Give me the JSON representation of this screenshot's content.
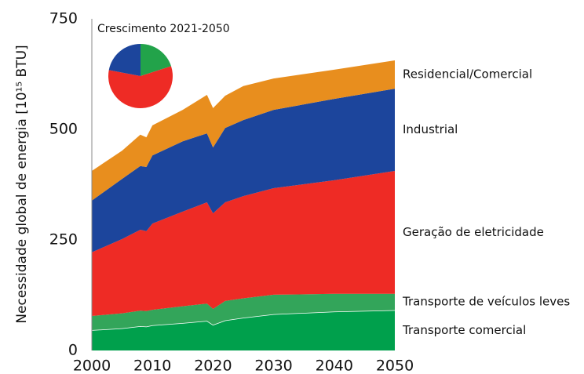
{
  "chart_data": [
    {
      "type": "area",
      "y_label": "Necessidade global de energia [10¹⁵ BTU]",
      "x": [
        2000,
        2005,
        2008,
        2009,
        2010,
        2015,
        2019,
        2020,
        2022,
        2025,
        2030,
        2040,
        2050
      ],
      "xlim": [
        2000,
        2050
      ],
      "xticks": [
        2000,
        2010,
        2020,
        2030,
        2040,
        2050
      ],
      "ylim": [
        0,
        750
      ],
      "yticks": [
        0,
        250,
        500,
        750
      ],
      "stacked": true,
      "series": [
        {
          "name": "Transporte comercial",
          "color": "#00a04c",
          "values": [
            46,
            50,
            55,
            54,
            57,
            62,
            67,
            58,
            68,
            74,
            82,
            88,
            91
          ]
        },
        {
          "name": "Transporte de veículos leves",
          "color": "#33a55a",
          "values": [
            32,
            34,
            35,
            35,
            35,
            38,
            39,
            36,
            44,
            44,
            44,
            40,
            37
          ]
        },
        {
          "name": "Geração de eletricidade",
          "color": "#ee2b25",
          "values": [
            144,
            168,
            183,
            181,
            195,
            214,
            229,
            216,
            223,
            231,
            241,
            257,
            278
          ]
        },
        {
          "name": "Industrial",
          "color": "#1c459c",
          "values": [
            117,
            136,
            144,
            145,
            154,
            159,
            156,
            149,
            168,
            172,
            177,
            184,
            186
          ]
        },
        {
          "name": "Residencial/Comercial",
          "color": "#e88e1e",
          "values": [
            67,
            64,
            71,
            67,
            68,
            71,
            87,
            89,
            73,
            77,
            71,
            66,
            64
          ]
        }
      ]
    },
    {
      "type": "pie",
      "title": "Crescimento 2021-2050",
      "values": [
        20,
        58,
        22
      ],
      "colors": [
        "#22a34a",
        "#ee2b25",
        "#1c459c"
      ]
    }
  ]
}
